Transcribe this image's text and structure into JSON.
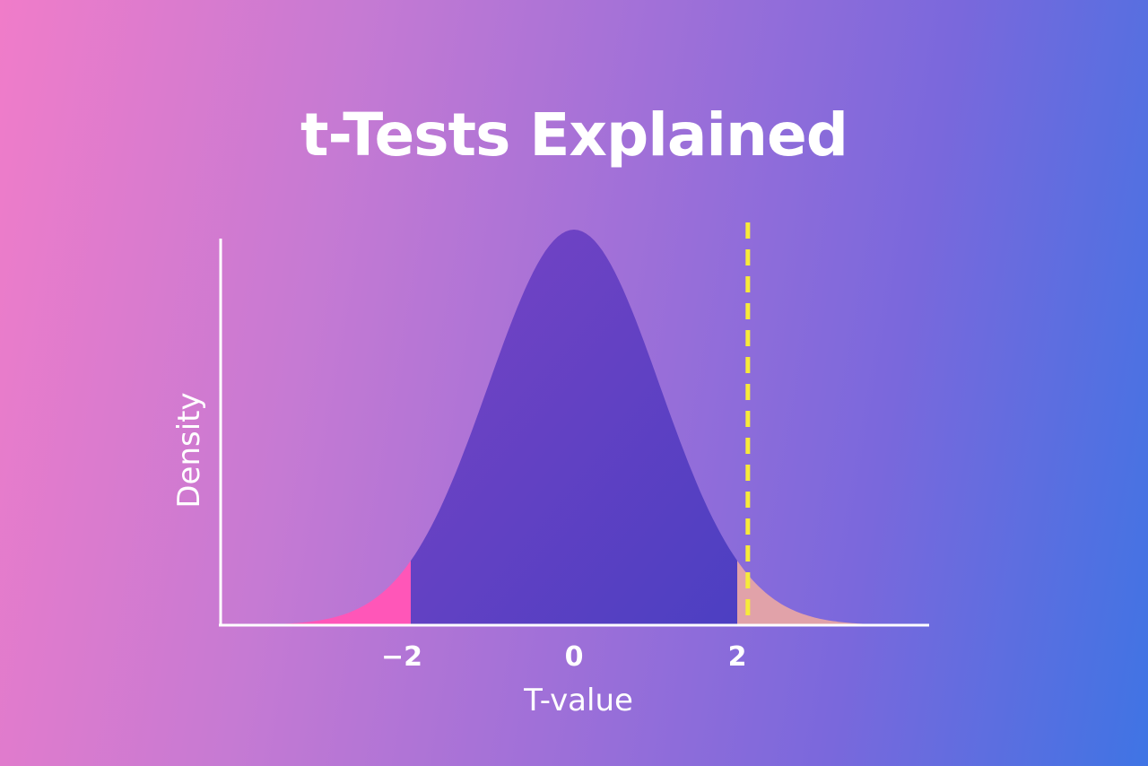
{
  "title": "t-Tests Explained",
  "chart_data": {
    "type": "area",
    "title": "t-Tests Explained",
    "xlabel": "T-value",
    "ylabel": "Density",
    "x_ticks": [
      {
        "value": -2,
        "label": "−2"
      },
      {
        "value": 0,
        "label": "0"
      },
      {
        "value": 2,
        "label": "2"
      }
    ],
    "xlim": [
      -4,
      4.3
    ],
    "ylim": [
      0,
      0.4
    ],
    "distribution": "t",
    "center": 0,
    "shaded_regions": [
      {
        "from": -4,
        "to": -2,
        "color": "#ff56b8"
      },
      {
        "from": -2,
        "to": 2,
        "color": "#6a3fc6"
      },
      {
        "from": 2,
        "to": 4.3,
        "color": "#e1a2a9"
      }
    ],
    "critical_line": {
      "value": 2.13,
      "style": "dashed",
      "color": "#f7ea3a"
    },
    "grid": false
  }
}
